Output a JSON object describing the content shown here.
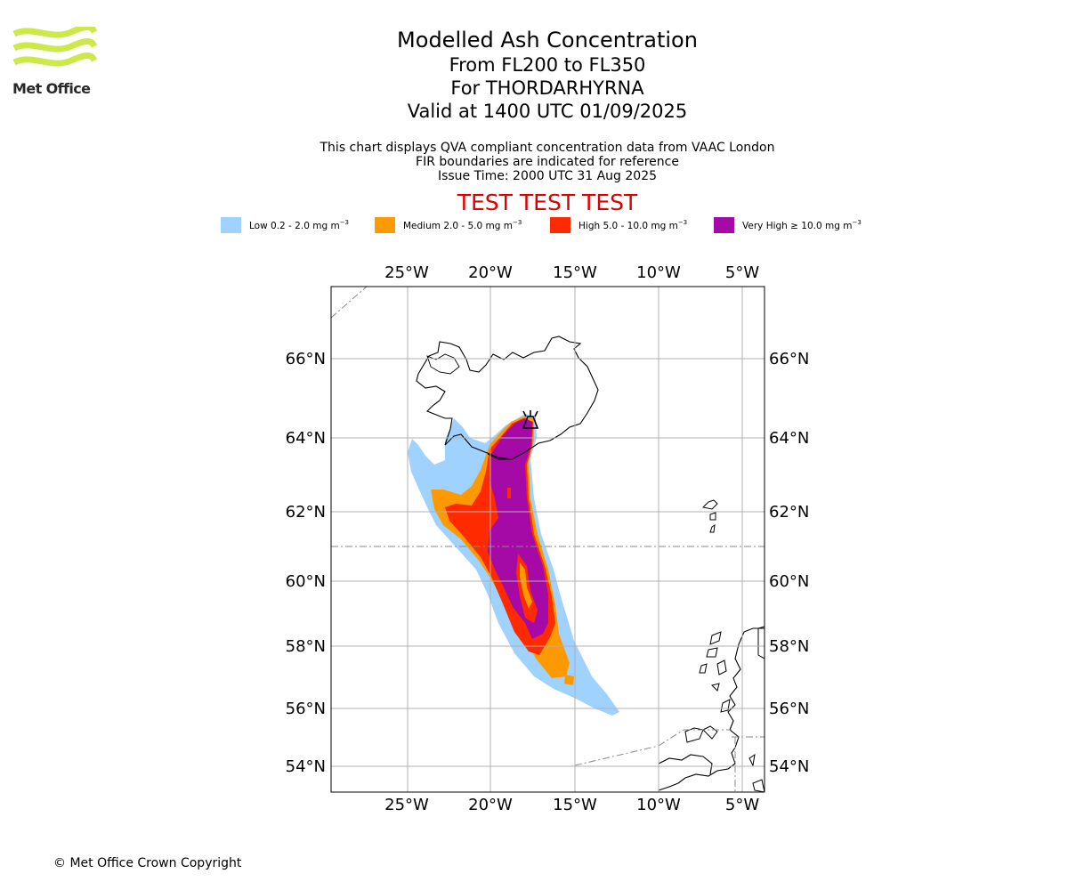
{
  "logo": {
    "text": "Met Office",
    "colors": [
      "#cde84a",
      "#2a2a2a"
    ]
  },
  "title": {
    "main": "Modelled Ash Concentration",
    "levels": "From FL200 to FL350",
    "volcano": "For THORDARHYRNA",
    "valid": "Valid at 1400 UTC 01/09/2025"
  },
  "subtitle": {
    "line1": "This chart displays QVA compliant concentration data from VAAC London",
    "line2": "FIR boundaries are indicated for reference",
    "line3": "Issue Time: 2000 UTC 31 Aug 2025"
  },
  "test_banner": "TEST TEST TEST",
  "legend": [
    {
      "label": "Low 0.2 - 2.0 mg m",
      "sup": "−3",
      "color": "#a0d2ff"
    },
    {
      "label": "Medium 2.0 - 5.0 mg m",
      "sup": "−3",
      "color": "#ff9900"
    },
    {
      "label": "High 5.0 - 10.0 mg m",
      "sup": "−3",
      "color": "#ff2a00"
    },
    {
      "label": "Very High ≥ 10.0 mg m",
      "sup": "−3",
      "color": "#a60aa6"
    }
  ],
  "map": {
    "lon_ticks": [
      "25°W",
      "20°W",
      "15°W",
      "10°W",
      "5°W"
    ],
    "lat_ticks": [
      "66°N",
      "64°N",
      "62°N",
      "60°N",
      "58°N",
      "56°N",
      "54°N"
    ],
    "volcano_icon": "volcano-marker-icon"
  },
  "copyright": "© Met Office Crown Copyright"
}
